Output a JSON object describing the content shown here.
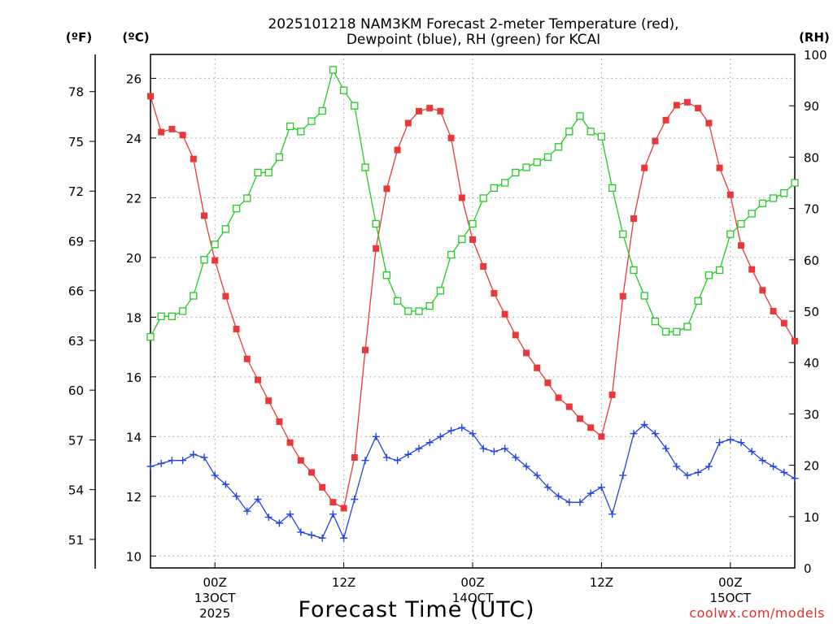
{
  "chart_data": {
    "type": "line",
    "title": [
      "2025101218 NAM3KM Forecast 2-meter Temperature (red),",
      "Dewpoint (blue), RH (green) for KCAI"
    ],
    "xlabel": "Forecast Time (UTC)",
    "credit": "coolwx.com/models",
    "units": {
      "f": "(ºF)",
      "c": "(ºC)",
      "rh": "(RH)"
    },
    "x_axis": {
      "unit": "hours since 2025-10-12 18Z",
      "range": [
        0,
        60
      ],
      "ticks": [
        {
          "hour": 6,
          "label": "00Z",
          "sub": [
            "13OCT",
            "2025"
          ]
        },
        {
          "hour": 18,
          "label": "12Z",
          "sub": []
        },
        {
          "hour": 30,
          "label": "00Z",
          "sub": [
            "14OCT"
          ]
        },
        {
          "hour": 42,
          "label": "12Z",
          "sub": []
        },
        {
          "hour": 54,
          "label": "00Z",
          "sub": [
            "15OCT"
          ]
        }
      ]
    },
    "y_celsius": {
      "range": [
        9.6,
        26.8
      ],
      "ticks": [
        "10",
        "12",
        "14",
        "16",
        "18",
        "20",
        "22",
        "24",
        "26"
      ]
    },
    "y_fahrenheit": {
      "ticks": [
        "51",
        "54",
        "57",
        "60",
        "63",
        "66",
        "69",
        "72",
        "75",
        "78"
      ]
    },
    "y_rh": {
      "range": [
        0,
        100
      ],
      "ticks": [
        "0",
        "10",
        "20",
        "30",
        "40",
        "50",
        "60",
        "70",
        "80",
        "90",
        "100"
      ]
    },
    "x": [
      0,
      1,
      2,
      3,
      4,
      5,
      6,
      7,
      8,
      9,
      10,
      11,
      12,
      13,
      14,
      15,
      16,
      17,
      18,
      19,
      20,
      21,
      22,
      23,
      24,
      25,
      26,
      27,
      28,
      29,
      30,
      31,
      32,
      33,
      34,
      35,
      36,
      37,
      38,
      39,
      40,
      41,
      42,
      43,
      44,
      45,
      46,
      47,
      48,
      49,
      50,
      51,
      52,
      53,
      54,
      55,
      56,
      57,
      58,
      59,
      60
    ],
    "series": [
      {
        "name": "2-meter Temperature (°C)",
        "color": "#e8393a",
        "marker": "filled-square",
        "axis": "celsius",
        "values": [
          25.4,
          24.2,
          24.3,
          24.1,
          23.3,
          21.4,
          19.9,
          18.7,
          17.6,
          16.6,
          15.9,
          15.2,
          14.5,
          13.8,
          13.2,
          12.8,
          12.3,
          11.8,
          11.6,
          13.3,
          16.9,
          20.3,
          22.3,
          23.6,
          24.5,
          24.9,
          25.0,
          24.9,
          24.0,
          22.0,
          20.6,
          19.7,
          18.8,
          18.1,
          17.4,
          16.8,
          16.3,
          15.8,
          15.3,
          15.0,
          14.6,
          14.3,
          14.0,
          15.4,
          18.7,
          21.3,
          23.0,
          23.9,
          24.6,
          25.1,
          25.2,
          25.0,
          24.5,
          23.0,
          22.1,
          20.4,
          19.6,
          18.9,
          18.2,
          17.8,
          17.2
        ]
      },
      {
        "name": "Dewpoint (°C)",
        "color": "#2244e0",
        "marker": "plus",
        "axis": "celsius",
        "values": [
          13.0,
          13.1,
          13.2,
          13.2,
          13.4,
          13.3,
          12.7,
          12.4,
          12.0,
          11.5,
          11.9,
          11.3,
          11.1,
          11.4,
          10.8,
          10.7,
          10.6,
          11.4,
          10.6,
          11.9,
          13.2,
          14.0,
          13.3,
          13.2,
          13.4,
          13.6,
          13.8,
          14.0,
          14.2,
          14.3,
          14.1,
          13.6,
          13.5,
          13.6,
          13.3,
          13.0,
          12.7,
          12.3,
          12.0,
          11.8,
          11.8,
          12.1,
          12.3,
          11.4,
          12.7,
          14.1,
          14.4,
          14.1,
          13.6,
          13.0,
          12.7,
          12.8,
          13.0,
          13.8,
          13.9,
          13.8,
          13.5,
          13.2,
          13.0,
          12.8,
          12.6
        ]
      },
      {
        "name": "RH (%)",
        "color": "#22cc22",
        "marker": "open-square",
        "axis": "rh",
        "values": [
          45,
          49,
          49,
          50,
          53,
          60,
          63,
          66,
          70,
          72,
          77,
          77,
          80,
          86,
          85,
          87,
          89,
          97,
          93,
          90,
          78,
          67,
          57,
          52,
          50,
          50,
          51,
          54,
          61,
          64,
          67,
          72,
          74,
          75,
          77,
          78,
          79,
          80,
          82,
          85,
          88,
          85,
          84,
          74,
          65,
          58,
          53,
          48,
          46,
          46,
          47,
          52,
          57,
          58,
          65,
          67,
          69,
          71,
          72,
          73,
          75
        ]
      }
    ]
  }
}
